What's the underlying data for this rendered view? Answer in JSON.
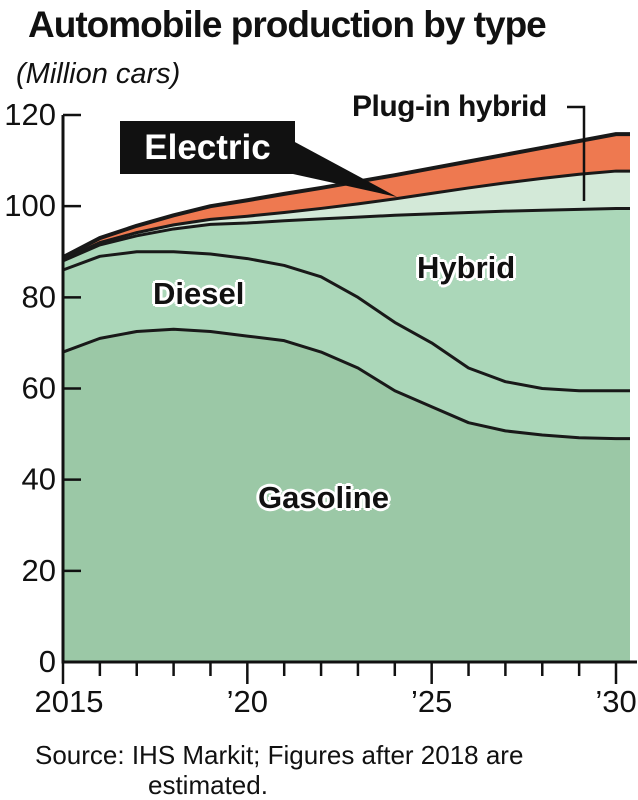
{
  "chart_data": {
    "type": "area",
    "title": "Automobile production by type",
    "unit_label": "(Million cars)",
    "years": [
      2015,
      2016,
      2017,
      2018,
      2019,
      2020,
      2021,
      2022,
      2023,
      2024,
      2025,
      2026,
      2027,
      2028,
      2029,
      2030
    ],
    "x_axis": {
      "major_ticks": [
        2015,
        2020,
        2025,
        2030
      ],
      "major_tick_labels": [
        "2015",
        "’20",
        "’25",
        "’30"
      ]
    },
    "y_axis": {
      "ticks": [
        0,
        20,
        40,
        60,
        80,
        100,
        120
      ],
      "range": [
        0,
        120
      ]
    },
    "grid": false,
    "legend_position": "inline-annotations",
    "line_color": "#191919",
    "series": [
      {
        "name": "Gasoline",
        "color": "#9bc8a6",
        "values": [
          68,
          71,
          72.5,
          73,
          72.5,
          71.5,
          70.5,
          68,
          64.5,
          59.5,
          56,
          52.5,
          50.7,
          49.8,
          49.2,
          49
        ]
      },
      {
        "name": "Diesel",
        "color": "#abd7b9",
        "values": [
          18,
          18,
          17.5,
          17,
          17,
          17,
          16.5,
          16.5,
          15.5,
          15,
          14,
          12,
          10.8,
          10.2,
          10.3,
          10.5
        ]
      },
      {
        "name": "Hybrid",
        "color": "#abd7b9",
        "values": [
          2,
          2.5,
          3.5,
          5,
          6.5,
          7.8,
          9.8,
          12.7,
          17.6,
          23.5,
          28.3,
          34.1,
          37.4,
          39.1,
          39.8,
          40
        ]
      },
      {
        "name": "Plug-in hybrid",
        "color": "#d3e9d8",
        "values": [
          0.3,
          0.5,
          0.7,
          0.9,
          1.1,
          1.5,
          1.8,
          2.3,
          2.9,
          3.6,
          4.5,
          5.4,
          6.2,
          7,
          7.7,
          8.2
        ]
      },
      {
        "name": "Electric",
        "color": "#ee7950",
        "values": [
          0.5,
          1,
          1.5,
          2.1,
          2.9,
          3.5,
          4.1,
          4.5,
          4.9,
          5.2,
          5.5,
          5.8,
          6.2,
          6.7,
          7.3,
          8.1
        ]
      }
    ]
  },
  "annotations": {
    "electric": "Electric",
    "plug_in_hybrid": "Plug-in hybrid",
    "diesel": "Diesel",
    "hybrid": "Hybrid",
    "gasoline": "Gasoline"
  },
  "source": {
    "line1": "Source: IHS Markit; Figures after 2018 are",
    "line2": "estimated."
  }
}
